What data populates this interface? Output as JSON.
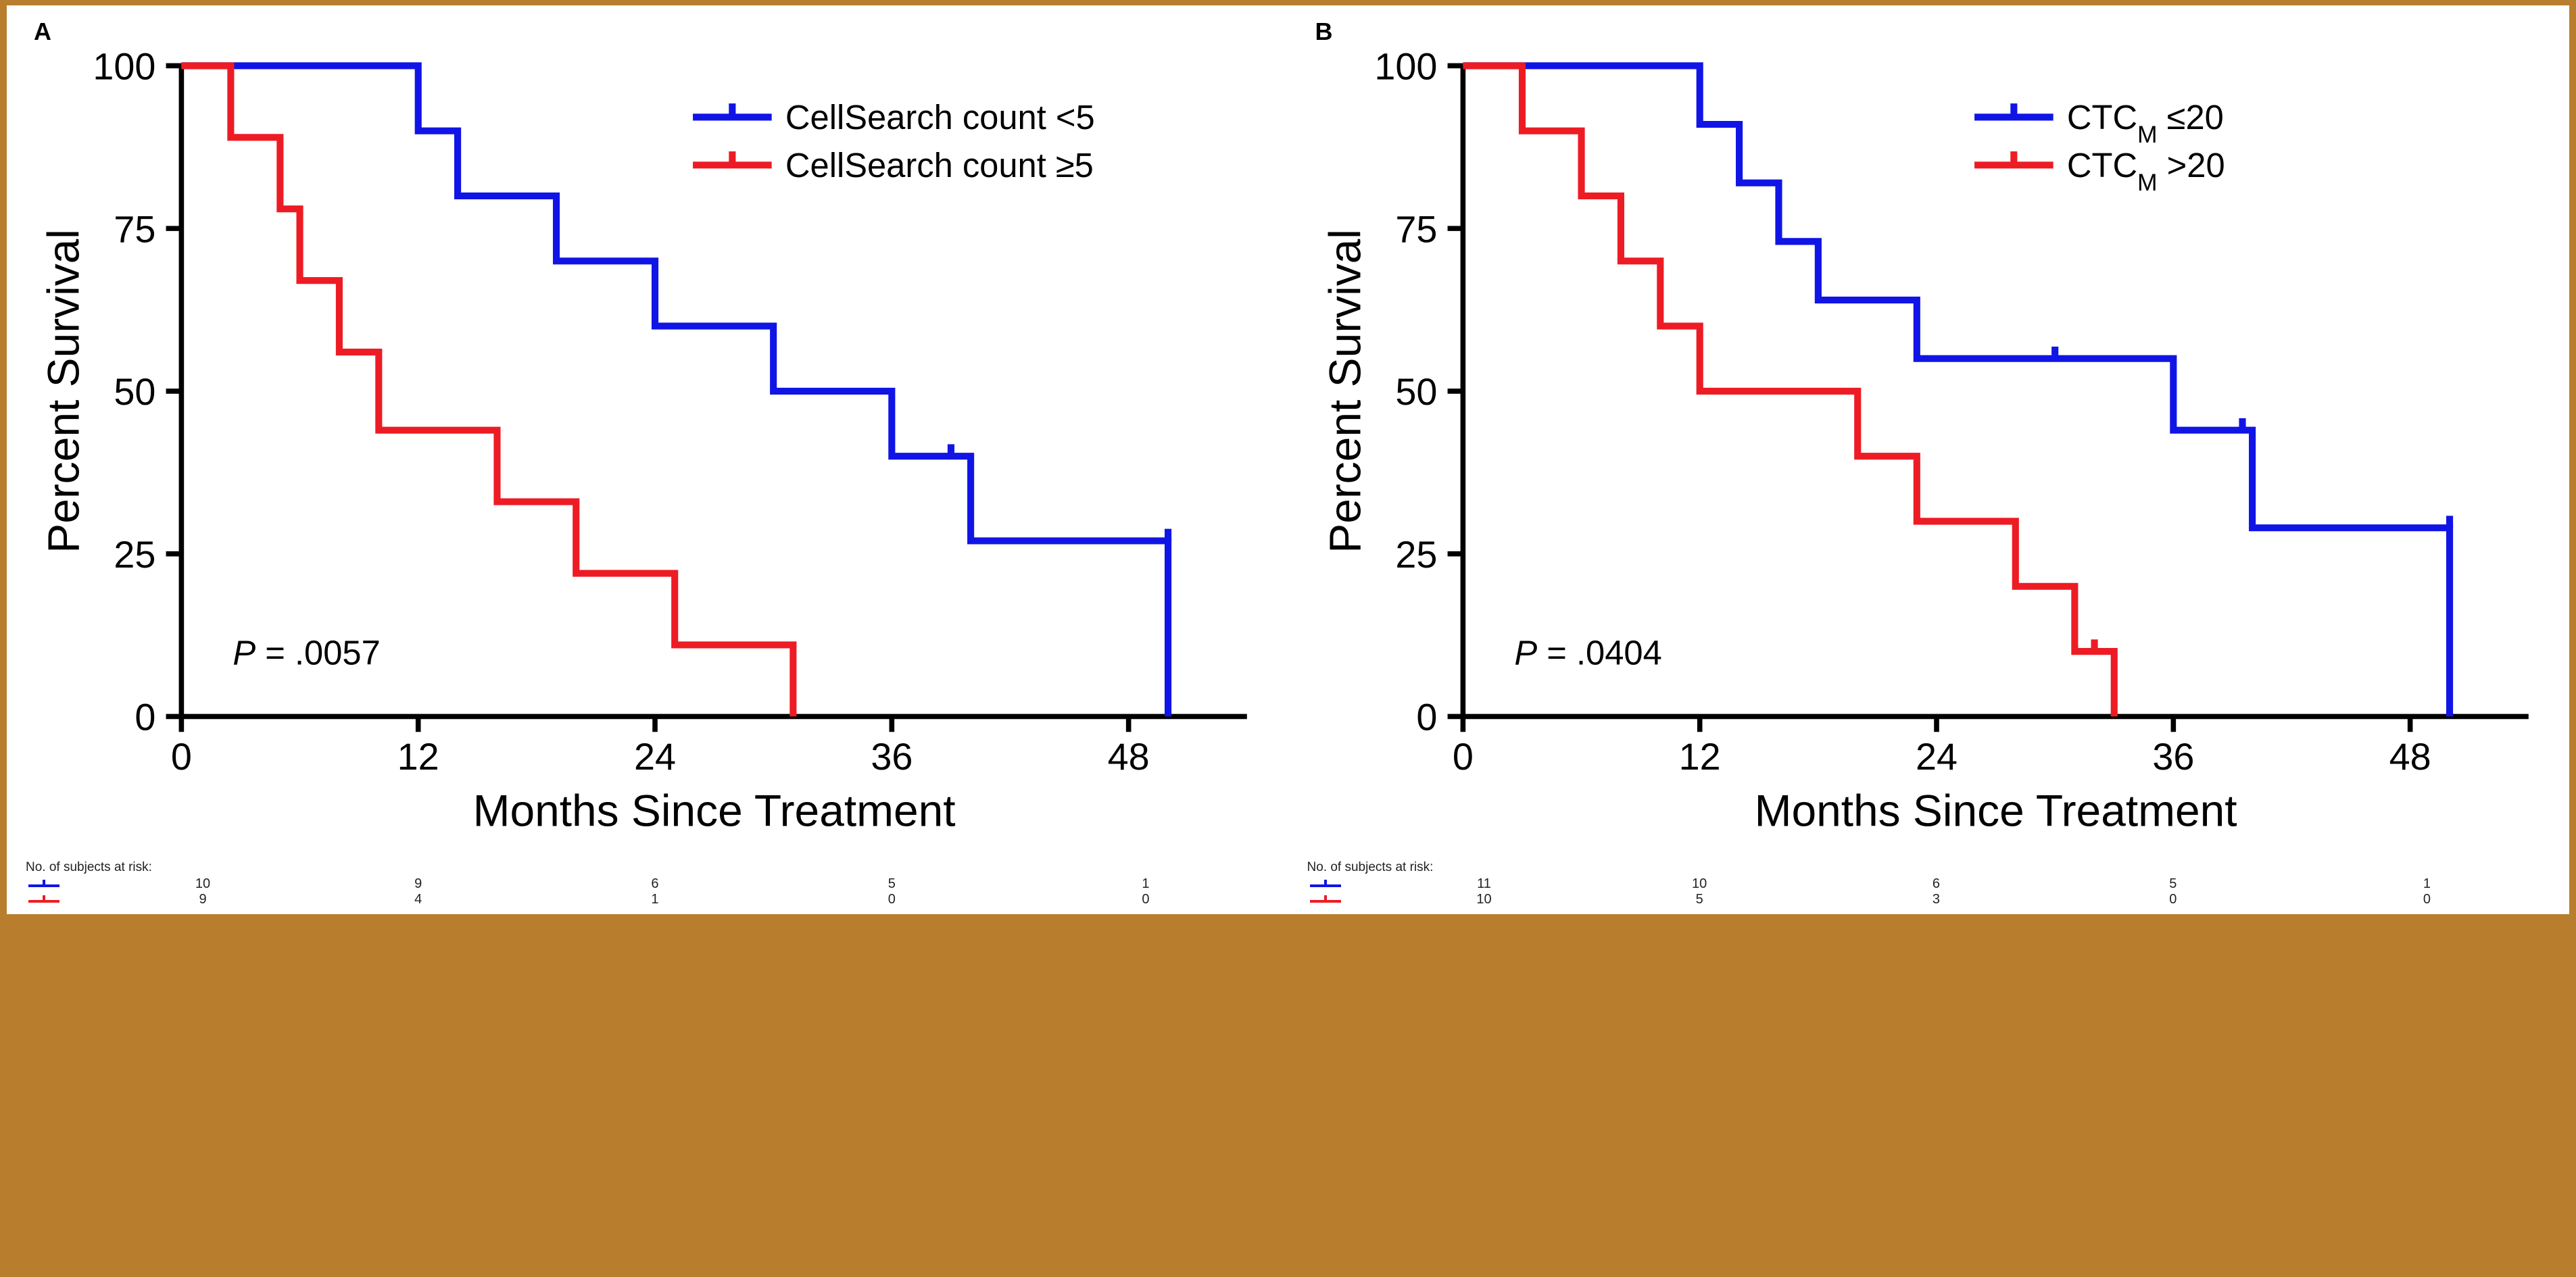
{
  "figure": {
    "background_color": "#ffffff",
    "outer_background": "#b87e2e",
    "border_color": "#b87e2e",
    "axis_color": "#000000",
    "axis_width": 3,
    "line_width": 4,
    "tick_length": 9,
    "font_family": "Arial",
    "ylabel_fontsize": 26,
    "xlabel_fontsize": 26,
    "ticklabel_fontsize": 22,
    "legend_fontsize": 20,
    "panel_label_fontsize": 36
  },
  "panels": [
    {
      "id": "A",
      "label": "A",
      "ylabel": "Percent Survival",
      "xlabel": "Months Since Treatment",
      "xlim": [
        0,
        54
      ],
      "ylim": [
        0,
        100
      ],
      "xticks": [
        0,
        12,
        24,
        36,
        48
      ],
      "yticks": [
        0,
        25,
        50,
        75,
        100
      ],
      "pvalue_prefix": "P",
      "pvalue_text": " = .0057",
      "series": [
        {
          "name": "CellSearch count <5",
          "color": "#1015e6",
          "steps": [
            [
              0,
              100
            ],
            [
              12,
              100
            ],
            [
              12,
              90
            ],
            [
              14,
              90
            ],
            [
              14,
              80
            ],
            [
              19,
              80
            ],
            [
              19,
              70
            ],
            [
              24,
              70
            ],
            [
              24,
              60
            ],
            [
              30,
              60
            ],
            [
              30,
              50
            ],
            [
              36,
              50
            ],
            [
              36,
              40
            ],
            [
              40,
              40
            ],
            [
              40,
              27
            ],
            [
              50,
              27
            ],
            [
              50,
              0
            ]
          ],
          "censor_ticks": [
            [
              39,
              40
            ],
            [
              50,
              27
            ]
          ]
        },
        {
          "name": "CellSearch count ≥5",
          "color": "#ed1c24",
          "steps": [
            [
              0,
              100
            ],
            [
              2.5,
              100
            ],
            [
              2.5,
              89
            ],
            [
              5,
              89
            ],
            [
              5,
              78
            ],
            [
              6,
              78
            ],
            [
              6,
              67
            ],
            [
              8,
              67
            ],
            [
              8,
              56
            ],
            [
              10,
              56
            ],
            [
              10,
              44
            ],
            [
              16,
              44
            ],
            [
              16,
              33
            ],
            [
              20,
              33
            ],
            [
              20,
              22
            ],
            [
              25,
              22
            ],
            [
              25,
              11
            ],
            [
              31,
              11
            ],
            [
              31,
              0
            ]
          ],
          "censor_ticks": []
        }
      ],
      "risk_table": {
        "title": "No. of subjects at risk:",
        "columns_at": [
          0,
          12,
          24,
          36,
          48
        ],
        "rows": [
          {
            "color": "#1015e6",
            "values": [
              10,
              9,
              6,
              5,
              1
            ]
          },
          {
            "color": "#ed1c24",
            "values": [
              9,
              4,
              1,
              0,
              0
            ]
          }
        ]
      }
    },
    {
      "id": "B",
      "label": "B",
      "ylabel": "Percent Survival",
      "xlabel": "Months Since Treatment",
      "xlim": [
        0,
        54
      ],
      "ylim": [
        0,
        100
      ],
      "xticks": [
        0,
        12,
        24,
        36,
        48
      ],
      "yticks": [
        0,
        25,
        50,
        75,
        100
      ],
      "pvalue_prefix": "P",
      "pvalue_text": " = .0404",
      "series": [
        {
          "name": "CTC",
          "suffix_sub": "M",
          "suffix_rest": " ≤20",
          "color": "#1015e6",
          "steps": [
            [
              0,
              100
            ],
            [
              12,
              100
            ],
            [
              12,
              91
            ],
            [
              14,
              91
            ],
            [
              14,
              82
            ],
            [
              16,
              82
            ],
            [
              16,
              73
            ],
            [
              18,
              73
            ],
            [
              18,
              64
            ],
            [
              23,
              64
            ],
            [
              23,
              55
            ],
            [
              36,
              55
            ],
            [
              36,
              44
            ],
            [
              40,
              44
            ],
            [
              40,
              29
            ],
            [
              50,
              29
            ],
            [
              50,
              0
            ]
          ],
          "censor_ticks": [
            [
              30,
              55
            ],
            [
              39.5,
              44
            ],
            [
              50,
              29
            ]
          ]
        },
        {
          "name": "CTC",
          "suffix_sub": "M",
          "suffix_rest": " >20",
          "color": "#ed1c24",
          "steps": [
            [
              0,
              100
            ],
            [
              3,
              100
            ],
            [
              3,
              90
            ],
            [
              6,
              90
            ],
            [
              6,
              80
            ],
            [
              8,
              80
            ],
            [
              8,
              70
            ],
            [
              10,
              70
            ],
            [
              10,
              60
            ],
            [
              12,
              60
            ],
            [
              12,
              50
            ],
            [
              20,
              50
            ],
            [
              20,
              40
            ],
            [
              23,
              40
            ],
            [
              23,
              30
            ],
            [
              28,
              30
            ],
            [
              28,
              20
            ],
            [
              31,
              20
            ],
            [
              31,
              10
            ],
            [
              33,
              10
            ],
            [
              33,
              0
            ]
          ],
          "censor_ticks": [
            [
              32,
              10
            ]
          ]
        }
      ],
      "risk_table": {
        "title": "No. of subjects at risk:",
        "columns_at": [
          0,
          12,
          24,
          36,
          48
        ],
        "rows": [
          {
            "color": "#1015e6",
            "values": [
              11,
              10,
              6,
              5,
              1
            ]
          },
          {
            "color": "#ed1c24",
            "values": [
              10,
              5,
              3,
              0,
              0
            ]
          }
        ]
      }
    }
  ]
}
